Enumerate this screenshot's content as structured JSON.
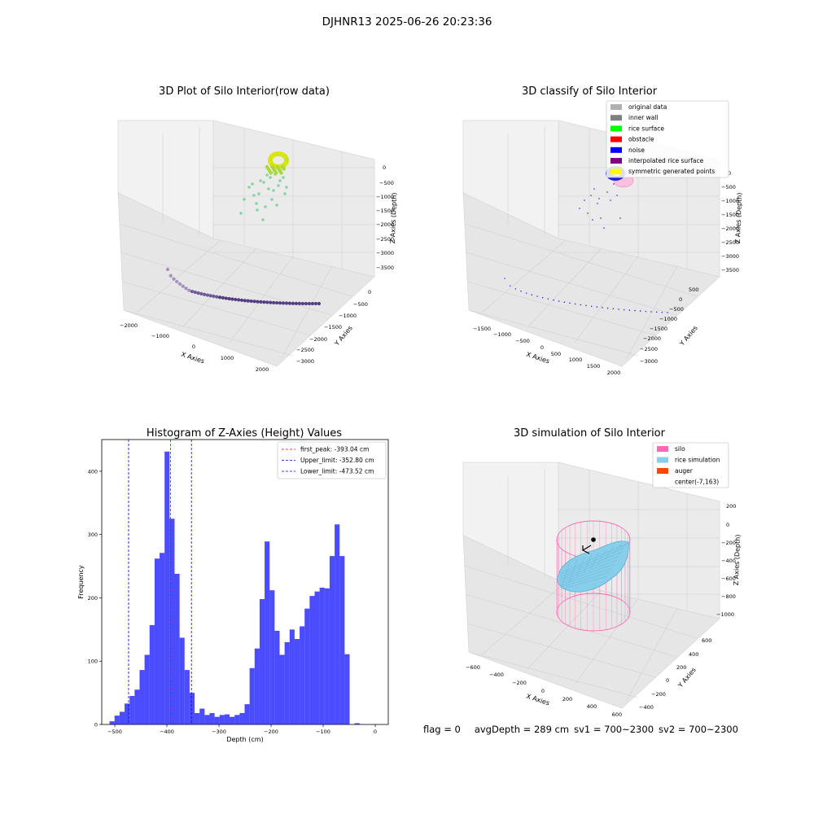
{
  "suptitle": "DJHNR13 2025-06-26 20:23:36",
  "panels": {
    "raw": {
      "title": "3D Plot of Silo Interior(row data)",
      "xlabel": "X Axies",
      "ylabel": "Y Axies",
      "zlabel": "Z Axies (Depth)",
      "xticks": [
        "−2000",
        "−1000",
        "0",
        "1000",
        "2000"
      ],
      "yticks": [
        "0",
        "−500",
        "−1000",
        "−1500",
        "−2000",
        "−2500",
        "−3000"
      ],
      "zticks": [
        "0",
        "−500",
        "−1000",
        "−1500",
        "−2000",
        "−2500",
        "−3000",
        "−3500"
      ]
    },
    "classify": {
      "title": "3D classify of Silo Interior",
      "xlabel": "X Axies",
      "ylabel": "Y Axies",
      "zlabel": "Z Axies (Depth)",
      "xticks": [
        "−1500",
        "−1000",
        "−500",
        "0",
        "500",
        "1000",
        "1500",
        "2000"
      ],
      "yticks": [
        "500",
        "0",
        "−500",
        "−1000",
        "−1500",
        "−2000",
        "−2500",
        "−3000"
      ],
      "zticks": [
        "0",
        "−500",
        "−1000",
        "−1500",
        "−2000",
        "−2500",
        "−3000",
        "−3500"
      ],
      "legend": [
        {
          "label": "original data",
          "color": "#b0b0b0"
        },
        {
          "label": "inner wall",
          "color": "#808080"
        },
        {
          "label": "rice surface",
          "color": "#00ff00"
        },
        {
          "label": "obstacle",
          "color": "#ff0000"
        },
        {
          "label": "noise",
          "color": "#0000ff"
        },
        {
          "label": "interpolated rice surface",
          "color": "#800080"
        },
        {
          "label": "symmetric generated points",
          "color": "#ffff00"
        }
      ]
    },
    "simulation": {
      "title": "3D simulation of Silo Interior",
      "xlabel": "X Axies",
      "ylabel": "Y Axies",
      "zlabel": "Z Axies (Depth)",
      "xticks": [
        "−600",
        "−400",
        "−200",
        "0",
        "200",
        "400",
        "600"
      ],
      "yticks": [
        "600",
        "400",
        "200",
        "0",
        "−200",
        "−400"
      ],
      "zticks": [
        "200",
        "0",
        "−200",
        "−400",
        "−600",
        "−800",
        "−1000"
      ],
      "legend": [
        {
          "label": "silo",
          "color": "#ff69b4"
        },
        {
          "label": "rice simulation",
          "color": "#87ceeb"
        },
        {
          "label": "auger",
          "color": "#ff4500"
        },
        {
          "label": "center(-7,163)",
          "color": ""
        }
      ]
    }
  },
  "chart_data": [
    {
      "type": "bar",
      "title": "Histogram of Z-Axies (Height) Values",
      "xlabel": "Depth (cm)",
      "ylabel": "Frequency",
      "xlim": [
        -525,
        25
      ],
      "ylim": [
        0,
        450
      ],
      "xticks": [
        -500,
        -400,
        -300,
        -200,
        -100,
        0
      ],
      "yticks": [
        0,
        100,
        200,
        300,
        400
      ],
      "bin_start": -510,
      "bin_width": 9.6,
      "values": [
        5,
        14,
        20,
        33,
        45,
        55,
        86,
        110,
        157,
        262,
        271,
        431,
        325,
        238,
        137,
        86,
        50,
        18,
        25,
        15,
        18,
        12,
        15,
        16,
        12,
        15,
        18,
        32,
        89,
        120,
        198,
        289,
        212,
        148,
        110,
        130,
        150,
        135,
        155,
        183,
        203,
        210,
        216,
        215,
        266,
        316,
        266,
        111,
        0,
        2
      ],
      "bar_color": "#0000ff",
      "vlines": [
        {
          "label": "first_peak: -393.04 cm",
          "x": -393.04,
          "color": "#ff0000"
        },
        {
          "label": "Upper_limit: -352.80 cm",
          "x": -352.8,
          "color": "#0000ff"
        },
        {
          "label": "Lower_limit: -473.52 cm",
          "x": -473.52,
          "color": "#0000ff"
        }
      ],
      "legend_position": "top-right"
    }
  ],
  "footer": {
    "flag": "flag = 0",
    "avg_depth": "avgDepth = 289 cm",
    "sv1": "sv1 = 700~2300",
    "sv2": "sv2 = 700~2300"
  }
}
